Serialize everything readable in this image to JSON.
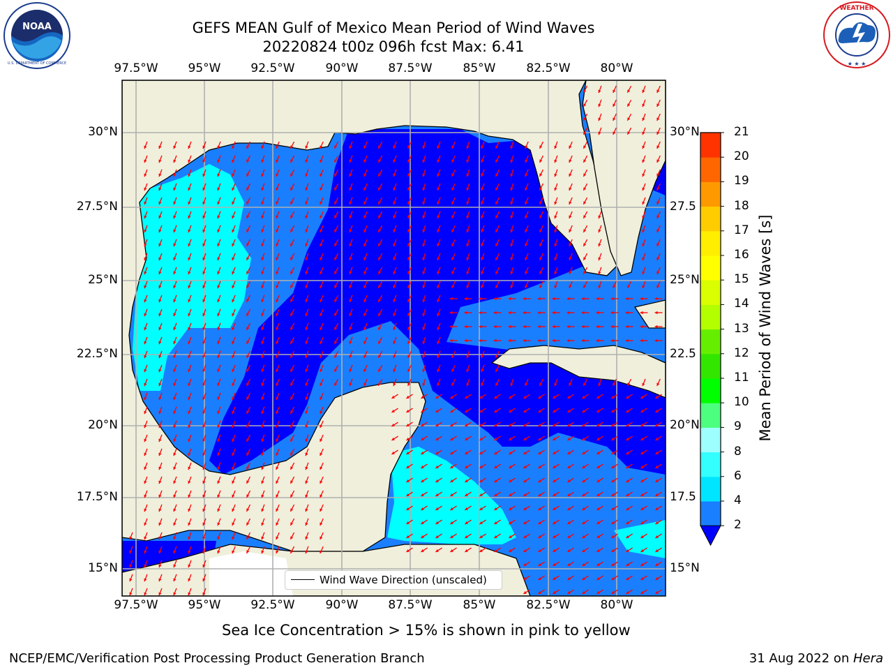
{
  "header": {
    "title_line1": "GEFS MEAN Gulf of Mexico Mean Period of Wind Waves",
    "title_line2": "20220824 t00z 096h fcst   Max: 6.41"
  },
  "logos": {
    "left": {
      "name": "NOAA",
      "ring_text": "NATIONAL OCEANIC AND ATMOSPHERIC ADMINISTRATION · U.S. DEPARTMENT OF COMMERCE"
    },
    "right": {
      "name": "NATIONAL WEATHER SERVICE"
    }
  },
  "axes": {
    "lon_labels": [
      "97.5°W",
      "95°W",
      "92.5°W",
      "90°W",
      "87.5°W",
      "85°W",
      "82.5°W",
      "80°W"
    ],
    "lat_labels_left": [
      "30°N",
      "27.5°N",
      "25°N",
      "22.5°N",
      "20°N",
      "17.5°N",
      "15°N"
    ],
    "lat_labels_right": [
      "30°N",
      "27.5",
      "25°N",
      "22.5",
      "20°N",
      "17.5",
      "15°N"
    ]
  },
  "legend": {
    "label": "Wind Wave Direction (unscaled)"
  },
  "colorbar": {
    "label": "Mean Period of Wind Waves [s]",
    "ticks": [
      "2",
      "4",
      "6",
      "8",
      "9",
      "10",
      "11",
      "12",
      "13",
      "14",
      "15",
      "16",
      "17",
      "18",
      "19",
      "20",
      "21"
    ],
    "colors": [
      "#1a7fff",
      "#00e5ff",
      "#33ffff",
      "#9effff",
      "#4dff7f",
      "#00ff00",
      "#33e600",
      "#66ee00",
      "#b3ff00",
      "#d9ff00",
      "#ffff00",
      "#ffee00",
      "#ffcc00",
      "#ff9900",
      "#ff6600",
      "#ff3300",
      "#ff0000"
    ],
    "extend_color": "#0000ff"
  },
  "colors": {
    "land": "#efefdc",
    "level_lowest": "#0000ff",
    "level_2_4": "#1a7fff",
    "level_4_6": "#00ffff",
    "arrow": "#ff0000"
  },
  "notes": {
    "sea_ice": "Sea Ice Concentration > 15% is shown in pink to yellow"
  },
  "footer": {
    "left": "NCEP/EMC/Verification Post Processing Product Generation Branch",
    "right_date": "31 Aug 2022 on ",
    "right_machine": "Hera"
  }
}
